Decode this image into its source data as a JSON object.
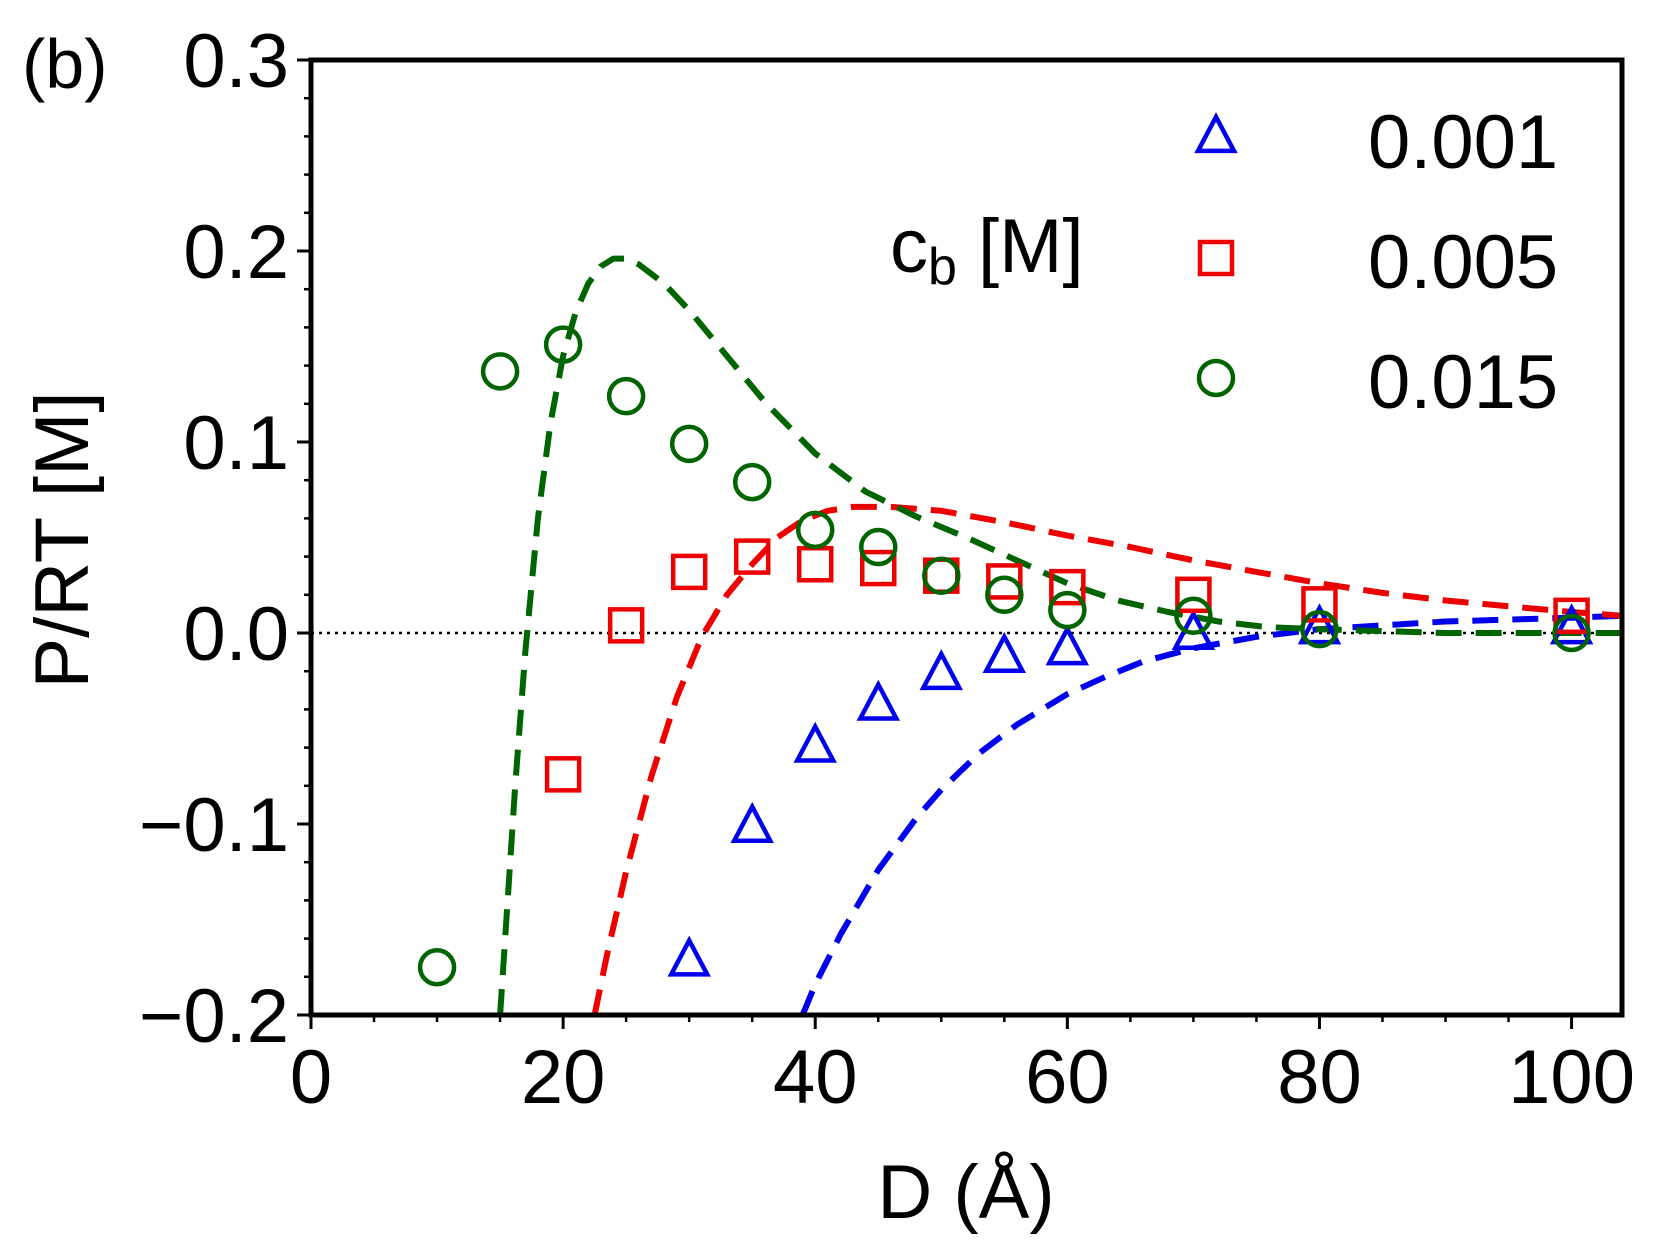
{
  "chart_data": {
    "type": "scatter",
    "panel_label": "(b)",
    "xlabel": "D (Å)",
    "ylabel": "P/RT [M]",
    "xlim": [
      0,
      104
    ],
    "ylim": [
      -0.2,
      0.3
    ],
    "x_ticks": [
      0,
      20,
      40,
      60,
      80,
      100
    ],
    "x_tick_labels": [
      "0",
      "20",
      "40",
      "60",
      "80",
      "100"
    ],
    "y_ticks": [
      -0.2,
      -0.1,
      0.0,
      0.1,
      0.2,
      0.3
    ],
    "y_tick_labels": [
      "−0.2",
      "−0.1",
      "0.0",
      "0.1",
      "0.2",
      "0.3"
    ],
    "zero_line": true,
    "legend": {
      "title_main": "c",
      "title_sub": "b",
      "title_unit": " [M]",
      "placement": "top-right"
    },
    "series": [
      {
        "name": "0.001",
        "marker": "triangle",
        "color": "#0000ee",
        "points": [
          [
            30,
            -0.172
          ],
          [
            35,
            -0.102
          ],
          [
            40,
            -0.06
          ],
          [
            45,
            -0.038
          ],
          [
            50,
            -0.022
          ],
          [
            55,
            -0.013
          ],
          [
            60,
            -0.009
          ],
          [
            70,
            -0.001
          ],
          [
            80,
            0.002
          ],
          [
            100,
            0.002
          ]
        ],
        "curve": [
          [
            39,
            -0.2
          ],
          [
            40,
            -0.184
          ],
          [
            42,
            -0.158
          ],
          [
            45,
            -0.124
          ],
          [
            48,
            -0.097
          ],
          [
            50,
            -0.082
          ],
          [
            53,
            -0.063
          ],
          [
            56,
            -0.048
          ],
          [
            60,
            -0.032
          ],
          [
            63,
            -0.023
          ],
          [
            66,
            -0.015
          ],
          [
            70,
            -0.008
          ],
          [
            75,
            -0.002
          ],
          [
            80,
            0.002
          ],
          [
            85,
            0.004
          ],
          [
            90,
            0.006
          ],
          [
            95,
            0.007
          ],
          [
            100,
            0.008
          ],
          [
            104,
            0.009
          ]
        ]
      },
      {
        "name": "0.005",
        "marker": "square",
        "color": "#ee0000",
        "points": [
          [
            20,
            -0.074
          ],
          [
            25,
            0.004
          ],
          [
            30,
            0.032
          ],
          [
            35,
            0.04
          ],
          [
            40,
            0.036
          ],
          [
            45,
            0.034
          ],
          [
            50,
            0.03
          ],
          [
            55,
            0.027
          ],
          [
            60,
            0.024
          ],
          [
            70,
            0.02
          ],
          [
            80,
            0.015
          ],
          [
            100,
            0.009
          ]
        ],
        "curve": [
          [
            22.5,
            -0.2
          ],
          [
            23.5,
            -0.168
          ],
          [
            25,
            -0.125
          ],
          [
            27,
            -0.075
          ],
          [
            29,
            -0.034
          ],
          [
            31,
            -0.002
          ],
          [
            33,
            0.02
          ],
          [
            35,
            0.036
          ],
          [
            37,
            0.05
          ],
          [
            39,
            0.059
          ],
          [
            41,
            0.064
          ],
          [
            43,
            0.066
          ],
          [
            46,
            0.066
          ],
          [
            50,
            0.064
          ],
          [
            55,
            0.058
          ],
          [
            60,
            0.051
          ],
          [
            65,
            0.045
          ],
          [
            70,
            0.038
          ],
          [
            75,
            0.032
          ],
          [
            80,
            0.026
          ],
          [
            85,
            0.021
          ],
          [
            90,
            0.017
          ],
          [
            95,
            0.014
          ],
          [
            100,
            0.011
          ],
          [
            104,
            0.009
          ]
        ]
      },
      {
        "name": "0.015",
        "marker": "circle",
        "color": "#006400",
        "points": [
          [
            10,
            -0.175
          ],
          [
            15,
            0.137
          ],
          [
            20,
            0.151
          ],
          [
            25,
            0.124
          ],
          [
            30,
            0.099
          ],
          [
            35,
            0.079
          ],
          [
            40,
            0.054
          ],
          [
            45,
            0.045
          ],
          [
            50,
            0.03
          ],
          [
            55,
            0.02
          ],
          [
            60,
            0.012
          ],
          [
            70,
            0.009
          ],
          [
            80,
            0.002
          ],
          [
            100,
            0.0
          ]
        ],
        "curve": [
          [
            15,
            -0.2
          ],
          [
            15.5,
            -0.15
          ],
          [
            16.2,
            -0.08
          ],
          [
            17,
            -0.01
          ],
          [
            18,
            0.06
          ],
          [
            19,
            0.11
          ],
          [
            20,
            0.145
          ],
          [
            21,
            0.168
          ],
          [
            22,
            0.183
          ],
          [
            23,
            0.192
          ],
          [
            24,
            0.196
          ],
          [
            25,
            0.196
          ],
          [
            26,
            0.193
          ],
          [
            28,
            0.183
          ],
          [
            30,
            0.169
          ],
          [
            33,
            0.145
          ],
          [
            36,
            0.121
          ],
          [
            40,
            0.094
          ],
          [
            44,
            0.074
          ],
          [
            48,
            0.061
          ],
          [
            52,
            0.05
          ],
          [
            56,
            0.038
          ],
          [
            60,
            0.026
          ],
          [
            64,
            0.017
          ],
          [
            68,
            0.011
          ],
          [
            72,
            0.006
          ],
          [
            76,
            0.003
          ],
          [
            80,
            0.002
          ],
          [
            90,
            0.0
          ],
          [
            100,
            0.0
          ],
          [
            104,
            0.0
          ]
        ]
      }
    ]
  }
}
